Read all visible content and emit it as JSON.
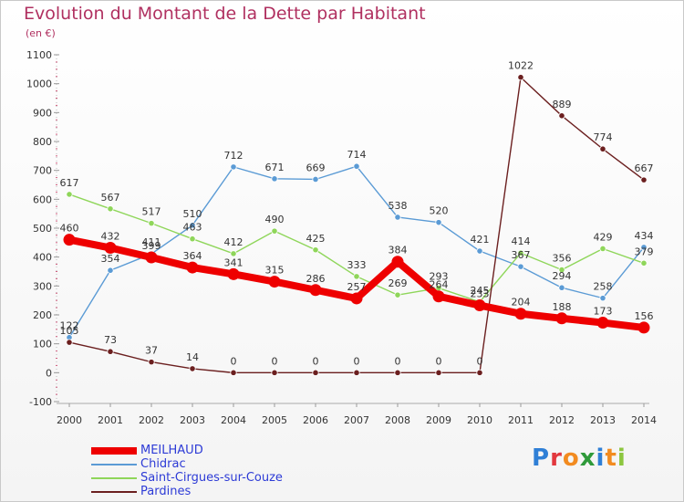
{
  "chart_data": {
    "type": "line",
    "title": "Evolution du Montant de la Dette par Habitant",
    "subtitle": "(en €)",
    "x": [
      "2000",
      "2001",
      "2002",
      "2003",
      "2004",
      "2005",
      "2006",
      "2007",
      "2008",
      "2009",
      "2010",
      "2011",
      "2012",
      "2013",
      "2014"
    ],
    "ylim": [
      -100,
      1100
    ],
    "yticks": [
      -100,
      0,
      100,
      200,
      300,
      400,
      500,
      600,
      700,
      800,
      900,
      1000,
      1100
    ],
    "grid": false,
    "legend_position": "bottom-left",
    "series": [
      {
        "name": "MEILHAUD",
        "color": "#ee0000",
        "values": [
          460,
          432,
          399,
          364,
          341,
          315,
          286,
          257,
          384,
          264,
          233,
          204,
          188,
          173,
          156
        ]
      },
      {
        "name": "Chidrac",
        "color": "#5b9bd5",
        "values": [
          122,
          354,
          411,
          510,
          712,
          671,
          669,
          714,
          538,
          520,
          421,
          367,
          294,
          258,
          434
        ]
      },
      {
        "name": "Saint-Cirgues-sur-Couze",
        "color": "#8fd65a",
        "values": [
          617,
          567,
          517,
          463,
          412,
          490,
          425,
          333,
          269,
          293,
          245,
          414,
          356,
          429,
          379
        ]
      },
      {
        "name": "Pardines",
        "color": "#6b1f1f",
        "values": [
          105,
          73,
          37,
          14,
          0,
          0,
          0,
          0,
          0,
          0,
          0,
          1022,
          889,
          774,
          667
        ]
      }
    ]
  },
  "legend": {
    "items": [
      {
        "label": "MEILHAUD",
        "color": "#ee0000"
      },
      {
        "label": "Chidrac",
        "color": "#5b9bd5"
      },
      {
        "label": "Saint-Cirgues-sur-Couze",
        "color": "#8fd65a"
      },
      {
        "label": "Pardines",
        "color": "#6b1f1f"
      }
    ]
  },
  "logo": {
    "text": "Proxiti",
    "letters": [
      "P",
      "r",
      "o",
      "x",
      "i",
      "t",
      "i"
    ],
    "colors": [
      "#2f7fd6",
      "#e2383e",
      "#f28b20",
      "#2f9a3a",
      "#2f7fd6",
      "#f28b20",
      "#8cc63f"
    ]
  }
}
